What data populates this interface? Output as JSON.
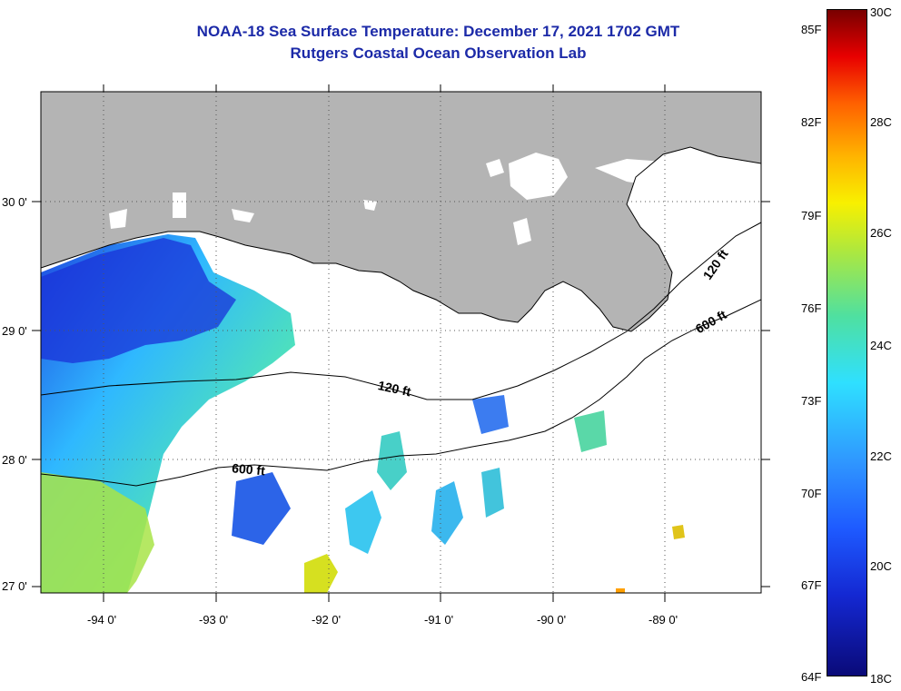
{
  "title": {
    "line1": "NOAA-18 Sea Surface Temperature:  December 17, 2021 1702 GMT",
    "line2": "Rutgers Coastal Ocean Observation Lab"
  },
  "map": {
    "lon_labels": [
      "-94 0'",
      "-93 0'",
      "-92 0'",
      "-91 0'",
      "-90 0'",
      "-89 0'"
    ],
    "lat_labels": [
      "30 0'",
      "29 0'",
      "28 0'",
      "27 0'"
    ],
    "contours": {
      "label_120_west": "120 ft",
      "label_120_east": "120 ft",
      "label_600_west": "600 ft",
      "label_600_east": "600 ft"
    },
    "colors": {
      "land": "#b4b4b4",
      "cloud": "#ffffff",
      "frame": "#000000"
    }
  },
  "colorbar": {
    "fahrenheit": [
      "85F",
      "82F",
      "79F",
      "76F",
      "73F",
      "70F",
      "67F",
      "64F"
    ],
    "celsius": [
      "30C",
      "28C",
      "26C",
      "24C",
      "22C",
      "20C",
      "18C"
    ],
    "min_c": 18,
    "max_c": 30
  }
}
